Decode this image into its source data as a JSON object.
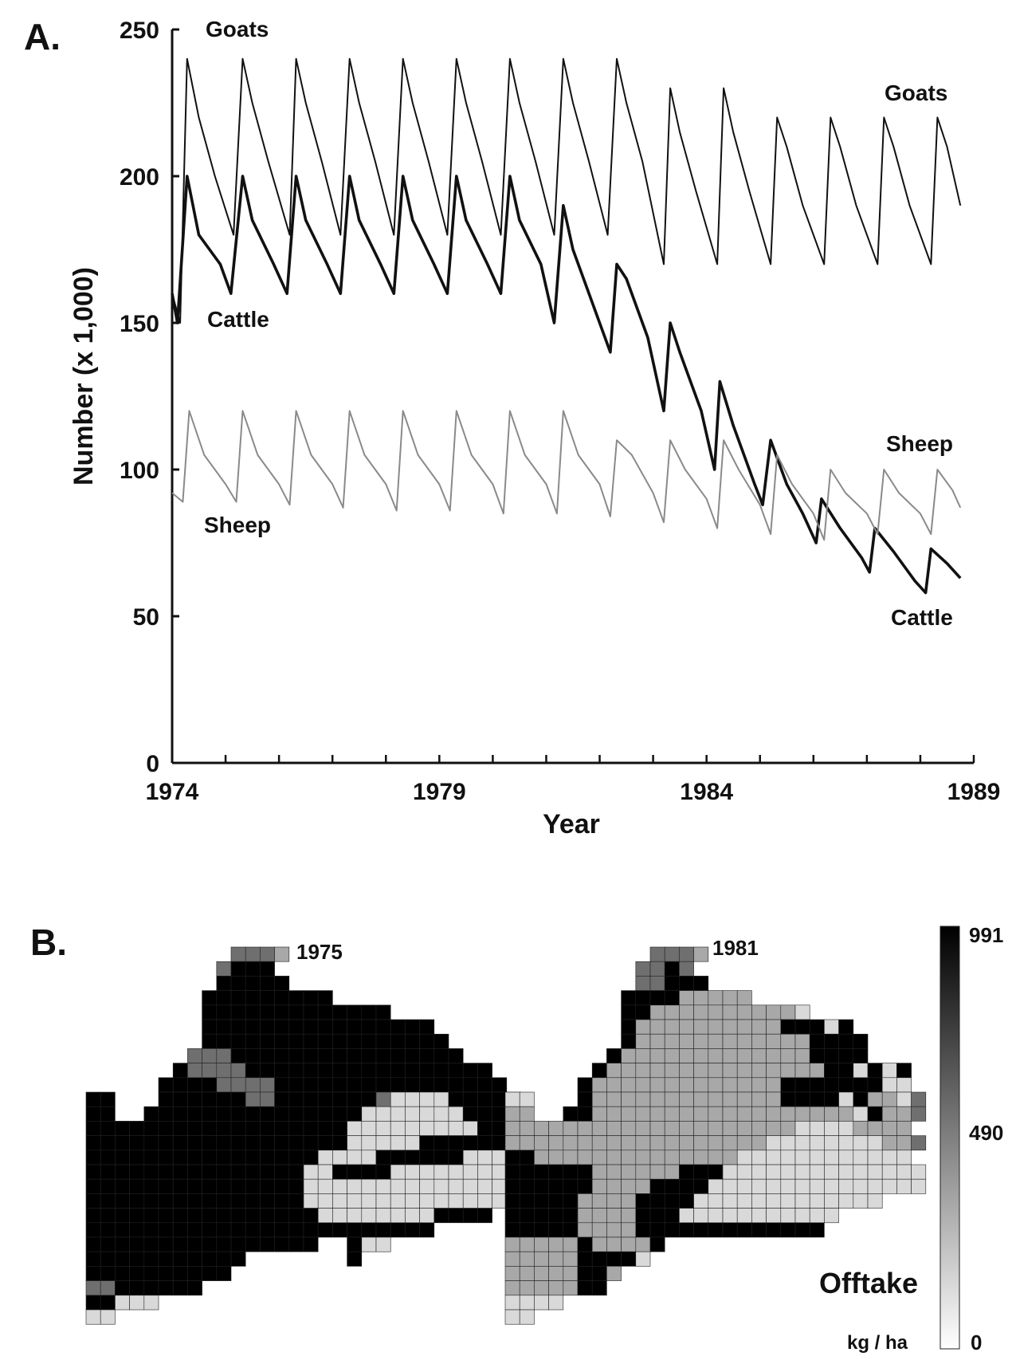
{
  "chart_data": [
    {
      "panel": "A.",
      "type": "line",
      "xlabel": "Year",
      "ylabel": "Number  (x 1,000)",
      "xlim": [
        1974,
        1989
      ],
      "ylim": [
        0,
        250
      ],
      "x_ticks": [
        "1974",
        "1979",
        "1984",
        "1989"
      ],
      "y_ticks": [
        "0",
        "50",
        "100",
        "150",
        "200",
        "250"
      ],
      "grid": false,
      "series": [
        {
          "name": "Goats",
          "color": "#111111",
          "label_positions": [
            "top-left",
            "top-right"
          ],
          "points": [
            [
              1974.0,
              160
            ],
            [
              1974.15,
              150
            ],
            [
              1974.28,
              240
            ],
            [
              1974.5,
              220
            ],
            [
              1974.8,
              200
            ],
            [
              1975.15,
              180
            ],
            [
              1975.32,
              240
            ],
            [
              1975.5,
              225
            ],
            [
              1975.8,
              205
            ],
            [
              1976.2,
              180
            ],
            [
              1976.32,
              240
            ],
            [
              1976.5,
              225
            ],
            [
              1976.8,
              205
            ],
            [
              1977.15,
              180
            ],
            [
              1977.32,
              240
            ],
            [
              1977.5,
              225
            ],
            [
              1977.8,
              205
            ],
            [
              1978.15,
              180
            ],
            [
              1978.32,
              240
            ],
            [
              1978.5,
              225
            ],
            [
              1978.8,
              205
            ],
            [
              1979.15,
              180
            ],
            [
              1979.32,
              240
            ],
            [
              1979.5,
              225
            ],
            [
              1979.8,
              205
            ],
            [
              1980.15,
              180
            ],
            [
              1980.32,
              240
            ],
            [
              1980.5,
              225
            ],
            [
              1980.8,
              205
            ],
            [
              1981.15,
              180
            ],
            [
              1981.32,
              240
            ],
            [
              1981.5,
              225
            ],
            [
              1981.8,
              205
            ],
            [
              1982.15,
              180
            ],
            [
              1982.32,
              240
            ],
            [
              1982.5,
              225
            ],
            [
              1982.8,
              205
            ],
            [
              1983.2,
              170
            ],
            [
              1983.32,
              230
            ],
            [
              1983.5,
              215
            ],
            [
              1983.8,
              195
            ],
            [
              1984.2,
              170
            ],
            [
              1984.32,
              230
            ],
            [
              1984.5,
              215
            ],
            [
              1984.8,
              195
            ],
            [
              1985.2,
              170
            ],
            [
              1985.32,
              220
            ],
            [
              1985.5,
              210
            ],
            [
              1985.8,
              190
            ],
            [
              1986.2,
              170
            ],
            [
              1986.32,
              220
            ],
            [
              1986.5,
              210
            ],
            [
              1986.8,
              190
            ],
            [
              1987.2,
              170
            ],
            [
              1987.32,
              220
            ],
            [
              1987.5,
              210
            ],
            [
              1987.8,
              190
            ],
            [
              1988.2,
              170
            ],
            [
              1988.32,
              220
            ],
            [
              1988.5,
              210
            ],
            [
              1988.75,
              190
            ]
          ]
        },
        {
          "name": "Cattle",
          "color": "#111111",
          "label_positions": [
            "left-middle",
            "bottom-right"
          ],
          "points": [
            [
              1974.0,
              160
            ],
            [
              1974.1,
              150
            ],
            [
              1974.28,
              200
            ],
            [
              1974.5,
              180
            ],
            [
              1974.9,
              170
            ],
            [
              1975.1,
              160
            ],
            [
              1975.32,
              200
            ],
            [
              1975.5,
              185
            ],
            [
              1975.9,
              170
            ],
            [
              1976.15,
              160
            ],
            [
              1976.32,
              200
            ],
            [
              1976.5,
              185
            ],
            [
              1976.9,
              170
            ],
            [
              1977.15,
              160
            ],
            [
              1977.32,
              200
            ],
            [
              1977.5,
              185
            ],
            [
              1977.9,
              170
            ],
            [
              1978.15,
              160
            ],
            [
              1978.32,
              200
            ],
            [
              1978.5,
              185
            ],
            [
              1978.9,
              170
            ],
            [
              1979.15,
              160
            ],
            [
              1979.32,
              200
            ],
            [
              1979.5,
              185
            ],
            [
              1979.9,
              170
            ],
            [
              1980.15,
              160
            ],
            [
              1980.32,
              200
            ],
            [
              1980.5,
              185
            ],
            [
              1980.9,
              170
            ],
            [
              1981.15,
              150
            ],
            [
              1981.32,
              190
            ],
            [
              1981.5,
              175
            ],
            [
              1981.9,
              155
            ],
            [
              1982.2,
              140
            ],
            [
              1982.32,
              170
            ],
            [
              1982.5,
              165
            ],
            [
              1982.9,
              145
            ],
            [
              1983.2,
              120
            ],
            [
              1983.32,
              150
            ],
            [
              1983.5,
              140
            ],
            [
              1983.9,
              120
            ],
            [
              1984.15,
              100
            ],
            [
              1984.25,
              130
            ],
            [
              1984.5,
              115
            ],
            [
              1984.9,
              95
            ],
            [
              1985.05,
              88
            ],
            [
              1985.2,
              110
            ],
            [
              1985.5,
              95
            ],
            [
              1985.8,
              85
            ],
            [
              1986.05,
              75
            ],
            [
              1986.15,
              90
            ],
            [
              1986.5,
              80
            ],
            [
              1986.9,
              70
            ],
            [
              1987.05,
              65
            ],
            [
              1987.15,
              80
            ],
            [
              1987.5,
              72
            ],
            [
              1987.9,
              62
            ],
            [
              1988.1,
              58
            ],
            [
              1988.2,
              73
            ],
            [
              1988.5,
              68
            ],
            [
              1988.75,
              63
            ]
          ]
        },
        {
          "name": "Sheep",
          "color": "#8a8a8a",
          "label_positions": [
            "bottom-left",
            "top-right"
          ],
          "points": [
            [
              1974.0,
              92
            ],
            [
              1974.2,
              89
            ],
            [
              1974.32,
              120
            ],
            [
              1974.6,
              105
            ],
            [
              1975.0,
              95
            ],
            [
              1975.2,
              89
            ],
            [
              1975.32,
              120
            ],
            [
              1975.6,
              105
            ],
            [
              1976.0,
              95
            ],
            [
              1976.2,
              88
            ],
            [
              1976.32,
              120
            ],
            [
              1976.6,
              105
            ],
            [
              1977.0,
              95
            ],
            [
              1977.2,
              87
            ],
            [
              1977.32,
              120
            ],
            [
              1977.6,
              105
            ],
            [
              1978.0,
              95
            ],
            [
              1978.2,
              86
            ],
            [
              1978.32,
              120
            ],
            [
              1978.6,
              105
            ],
            [
              1979.0,
              95
            ],
            [
              1979.2,
              86
            ],
            [
              1979.32,
              120
            ],
            [
              1979.6,
              105
            ],
            [
              1980.0,
              95
            ],
            [
              1980.2,
              85
            ],
            [
              1980.32,
              120
            ],
            [
              1980.6,
              105
            ],
            [
              1981.0,
              95
            ],
            [
              1981.2,
              85
            ],
            [
              1981.32,
              120
            ],
            [
              1981.6,
              105
            ],
            [
              1982.0,
              95
            ],
            [
              1982.2,
              84
            ],
            [
              1982.32,
              110
            ],
            [
              1982.6,
              105
            ],
            [
              1983.0,
              92
            ],
            [
              1983.2,
              82
            ],
            [
              1983.32,
              110
            ],
            [
              1983.6,
              100
            ],
            [
              1984.0,
              90
            ],
            [
              1984.2,
              80
            ],
            [
              1984.32,
              110
            ],
            [
              1984.6,
              100
            ],
            [
              1985.0,
              88
            ],
            [
              1985.2,
              78
            ],
            [
              1985.32,
              105
            ],
            [
              1985.6,
              95
            ],
            [
              1986.0,
              85
            ],
            [
              1986.2,
              76
            ],
            [
              1986.32,
              100
            ],
            [
              1986.6,
              92
            ],
            [
              1987.0,
              85
            ],
            [
              1987.2,
              78
            ],
            [
              1987.32,
              100
            ],
            [
              1987.6,
              92
            ],
            [
              1988.0,
              85
            ],
            [
              1988.2,
              78
            ],
            [
              1988.32,
              100
            ],
            [
              1988.6,
              93
            ],
            [
              1988.75,
              87
            ]
          ]
        }
      ]
    },
    {
      "panel": "B.",
      "type": "heatmap",
      "maps": [
        {
          "title": "1975",
          "rows": [
            "..........4443......................",
            ".........4555.......................",
            ".........55555......................",
            "........555555555...................",
            "........5555555555555...............",
            "........5555555555555555............",
            "........55555555555555555...........",
            ".......4445555555555555555..........",
            "......5444455555555555555555........",
            ".....555544445555555555555555.......",
            "55...5555554455555554222255554......",
            "55..55555555555555522222225555......",
            "555555555555555555222222222555......",
            "5555555555555555552222255555552.....",
            "5555555555555555222255555522222.....",
            "55555555555555522555522222222222....",
            "55555555555555522222222222222222....",
            "5555555555555552222222222222255.....",
            "5555555555555555222222225555........",
            "555555555555555555555555............",
            "5555555555555555..522...............",
            "55555555555.......5.................",
            "5555555555..........................",
            "44555555............................",
            "55222...............................",
            "22.................................."
          ]
        },
        {
          "title": "1981",
          "rows": [
            "..........4443......................",
            ".........4454.......................",
            ".........44555......................",
            "........555533333...................",
            "........5533333333332...............",
            "........5333333333355525............",
            "........53333333333335555...........",
            ".......533333333333335555...........",
            "......5333333333333333552525........",
            ".....53333333333333555555522........",
            "22...533333333333335555253324.......",
            "33..5533333333333333333325334.......",
            "3333333333333333333322223333........",
            "33333333333333333322222222334.......",
            "5533333333333333222222222222........",
            "55555533333355522222222222222.......",
            "55555533335555222222222222222.......",
            "55555333355552222222222222..........",
            "55555333355522222222222.............",
            "5555533335555555555555..............",
            "33333533335..........................",
            "3333355552...........................",
            "33333553.............................",
            "3333355..............................",
            "2222.................................",
            "22..................................."
          ]
        }
      ],
      "legend": {
        "title": "Offtake",
        "unit": "kg / ha",
        "ticks": [
          "991",
          "490",
          "0"
        ],
        "min": 0,
        "max": 991,
        "colors": [
          "#ffffff",
          "#000000"
        ]
      }
    }
  ],
  "labels": {
    "panel_a": "A.",
    "panel_b": "B.",
    "goats_left": "Goats",
    "goats_right": "Goats",
    "cattle_left": "Cattle",
    "cattle_right": "Cattle",
    "sheep_left": "Sheep",
    "sheep_right": "Sheep"
  }
}
